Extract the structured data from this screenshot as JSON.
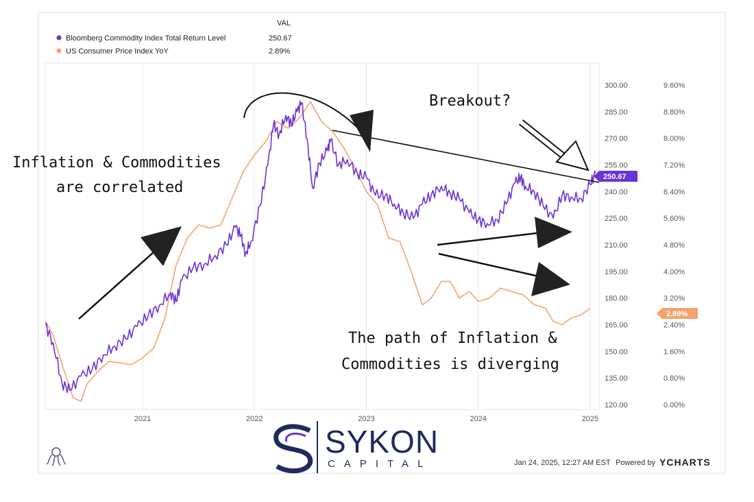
{
  "legend": {
    "header": "VAL",
    "items": [
      {
        "label": "Bloomberg Commodity Index Total Return Level",
        "value": "250.67",
        "color": "#6b32d6"
      },
      {
        "label": "US Consumer Price Index YoY",
        "value": "2.89%",
        "color": "#f4a36c"
      }
    ]
  },
  "annotations": {
    "correlated_line1": "Inflation & Commodities",
    "correlated_line2": "are correlated",
    "breakout": "Breakout?",
    "diverging_line1": "The path of Inflation &",
    "diverging_line2": "Commodities is diverging"
  },
  "badges": {
    "commodity": "250.67",
    "cpi": "2.89%"
  },
  "brand": {
    "name": "SYKON",
    "sub": "CAPITAL",
    "color": "#1f2b5e"
  },
  "footer": {
    "timestamp": "Jan 24, 2025, 12:27 AM EST",
    "powered": "Powered by",
    "provider": "YCHARTS"
  },
  "chart_data": {
    "type": "line",
    "x_ticks": [
      "2021",
      "2022",
      "2023",
      "2024",
      "2025"
    ],
    "y_left": {
      "ticks": [
        "120.00",
        "135.00",
        "150.00",
        "165.00",
        "180.00",
        "195.00",
        "210.00",
        "225.00",
        "240.00",
        "255.00",
        "270.00",
        "285.00",
        "300.00"
      ],
      "range": [
        120,
        300
      ]
    },
    "y_right": {
      "ticks": [
        "0.00%",
        "0.80%",
        "1.60%",
        "2.40%",
        "3.20%",
        "4.00%",
        "4.80%",
        "5.60%",
        "6.40%",
        "7.20%",
        "8.00%",
        "8.80%",
        "9.60%"
      ],
      "range": [
        0,
        9.6
      ]
    },
    "grid": "vertical",
    "series": [
      {
        "name": "Bloomberg Commodity Index Total Return Level",
        "axis": "left",
        "color": "#6b32d6",
        "points": [
          [
            2020.13,
            165
          ],
          [
            2020.2,
            155
          ],
          [
            2020.28,
            132
          ],
          [
            2020.35,
            128
          ],
          [
            2020.45,
            136
          ],
          [
            2020.55,
            140
          ],
          [
            2020.65,
            148
          ],
          [
            2020.75,
            153
          ],
          [
            2020.85,
            157
          ],
          [
            2020.95,
            164
          ],
          [
            2021.05,
            170
          ],
          [
            2021.15,
            176
          ],
          [
            2021.25,
            183
          ],
          [
            2021.3,
            178
          ],
          [
            2021.35,
            190
          ],
          [
            2021.45,
            197
          ],
          [
            2021.55,
            199
          ],
          [
            2021.65,
            204
          ],
          [
            2021.75,
            210
          ],
          [
            2021.83,
            220
          ],
          [
            2021.88,
            215
          ],
          [
            2021.92,
            205
          ],
          [
            2021.97,
            212
          ],
          [
            2022.05,
            232
          ],
          [
            2022.12,
            255
          ],
          [
            2022.17,
            278
          ],
          [
            2022.22,
            272
          ],
          [
            2022.28,
            283
          ],
          [
            2022.33,
            278
          ],
          [
            2022.38,
            285
          ],
          [
            2022.42,
            290
          ],
          [
            2022.47,
            270
          ],
          [
            2022.52,
            242
          ],
          [
            2022.58,
            256
          ],
          [
            2022.65,
            263
          ],
          [
            2022.68,
            269
          ],
          [
            2022.75,
            255
          ],
          [
            2022.83,
            258
          ],
          [
            2022.92,
            250
          ],
          [
            2023.0,
            248
          ],
          [
            2023.08,
            238
          ],
          [
            2023.17,
            238
          ],
          [
            2023.25,
            233
          ],
          [
            2023.33,
            228
          ],
          [
            2023.42,
            225
          ],
          [
            2023.5,
            233
          ],
          [
            2023.58,
            238
          ],
          [
            2023.67,
            243
          ],
          [
            2023.75,
            239
          ],
          [
            2023.83,
            236
          ],
          [
            2023.92,
            228
          ],
          [
            2024.0,
            224
          ],
          [
            2024.08,
            222
          ],
          [
            2024.17,
            224
          ],
          [
            2024.25,
            233
          ],
          [
            2024.33,
            245
          ],
          [
            2024.38,
            248
          ],
          [
            2024.42,
            243
          ],
          [
            2024.5,
            240
          ],
          [
            2024.58,
            232
          ],
          [
            2024.67,
            225
          ],
          [
            2024.75,
            238
          ],
          [
            2024.83,
            237
          ],
          [
            2024.92,
            236
          ],
          [
            2025.0,
            244
          ],
          [
            2025.05,
            250.67
          ]
        ]
      },
      {
        "name": "US Consumer Price Index YoY",
        "axis": "right",
        "color": "#f4a36c",
        "points": [
          [
            2020.13,
            2.5
          ],
          [
            2020.2,
            2.1
          ],
          [
            2020.3,
            1.0
          ],
          [
            2020.38,
            0.2
          ],
          [
            2020.45,
            0.1
          ],
          [
            2020.5,
            0.6
          ],
          [
            2020.6,
            1.0
          ],
          [
            2020.7,
            1.3
          ],
          [
            2020.8,
            1.25
          ],
          [
            2020.9,
            1.2
          ],
          [
            2021.0,
            1.4
          ],
          [
            2021.1,
            1.7
          ],
          [
            2021.2,
            2.6
          ],
          [
            2021.3,
            4.2
          ],
          [
            2021.4,
            5.0
          ],
          [
            2021.5,
            5.4
          ],
          [
            2021.6,
            5.3
          ],
          [
            2021.7,
            5.4
          ],
          [
            2021.8,
            6.2
          ],
          [
            2021.9,
            7.0
          ],
          [
            2022.0,
            7.5
          ],
          [
            2022.1,
            7.9
          ],
          [
            2022.2,
            8.5
          ],
          [
            2022.3,
            8.3
          ],
          [
            2022.4,
            8.6
          ],
          [
            2022.5,
            9.1
          ],
          [
            2022.6,
            8.5
          ],
          [
            2022.7,
            8.2
          ],
          [
            2022.8,
            7.7
          ],
          [
            2022.9,
            7.1
          ],
          [
            2023.0,
            6.4
          ],
          [
            2023.1,
            6.0
          ],
          [
            2023.2,
            5.0
          ],
          [
            2023.3,
            4.9
          ],
          [
            2023.4,
            4.0
          ],
          [
            2023.5,
            3.0
          ],
          [
            2023.58,
            3.2
          ],
          [
            2023.67,
            3.7
          ],
          [
            2023.75,
            3.7
          ],
          [
            2023.83,
            3.2
          ],
          [
            2023.92,
            3.4
          ],
          [
            2024.0,
            3.1
          ],
          [
            2024.1,
            3.2
          ],
          [
            2024.2,
            3.5
          ],
          [
            2024.3,
            3.4
          ],
          [
            2024.4,
            3.3
          ],
          [
            2024.5,
            3.0
          ],
          [
            2024.6,
            2.9
          ],
          [
            2024.67,
            2.5
          ],
          [
            2024.75,
            2.4
          ],
          [
            2024.83,
            2.6
          ],
          [
            2024.92,
            2.7
          ],
          [
            2025.0,
            2.89
          ]
        ]
      }
    ]
  }
}
